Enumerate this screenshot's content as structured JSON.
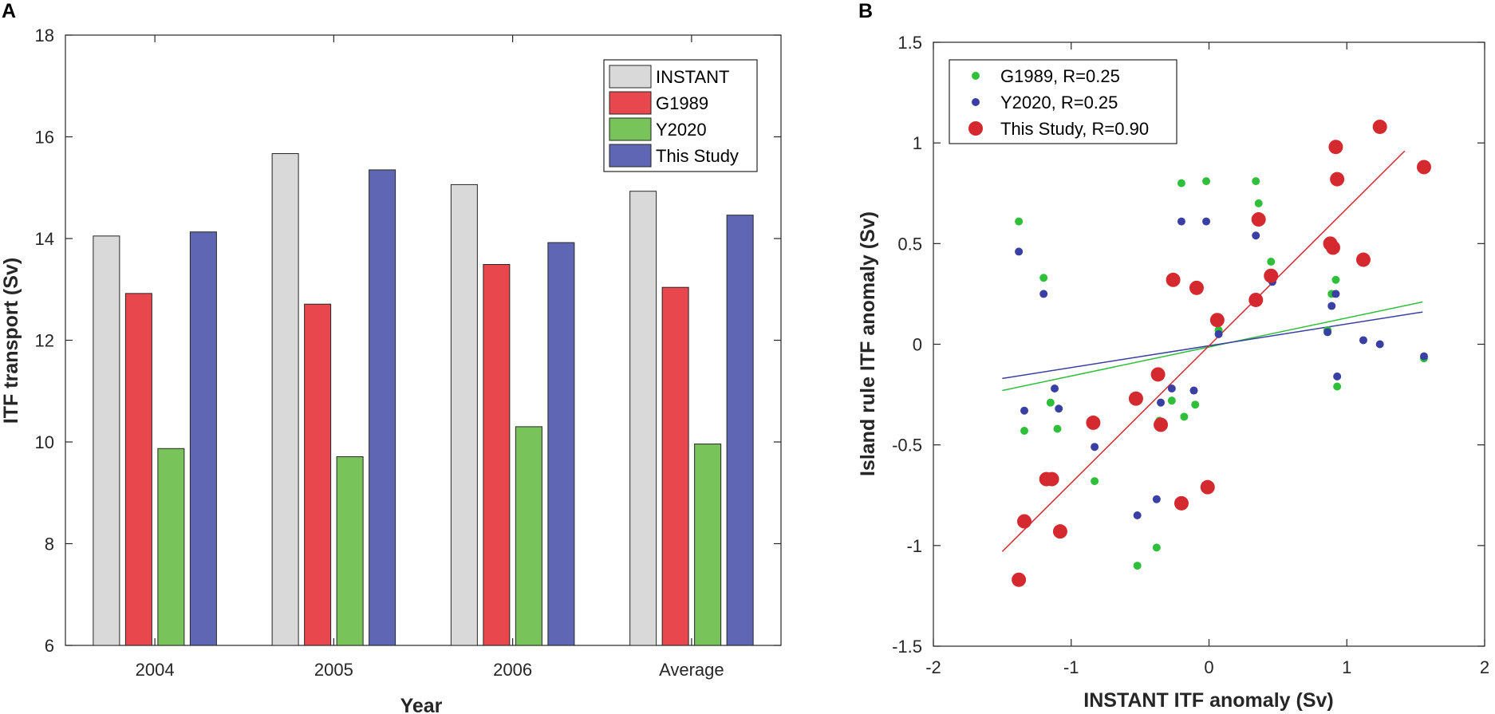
{
  "chart_data": [
    {
      "panel": "A",
      "type": "bar",
      "xlabel": "Year",
      "ylabel": "ITF transport (Sv)",
      "categories": [
        "2004",
        "2005",
        "2006",
        "Average"
      ],
      "ylim": [
        6,
        18
      ],
      "yticks": [
        "6",
        "8",
        "10",
        "12",
        "14",
        "16",
        "18"
      ],
      "series": [
        {
          "name": "INSTANT",
          "color": "#d9d9d9",
          "values": [
            14.05,
            15.67,
            15.06,
            14.93
          ]
        },
        {
          "name": "G1989",
          "color": "#e8474d",
          "values": [
            12.92,
            12.71,
            13.49,
            13.04
          ]
        },
        {
          "name": "Y2020",
          "color": "#78c35a",
          "values": [
            9.87,
            9.71,
            10.3,
            9.96
          ]
        },
        {
          "name": "This Study",
          "color": "#5f66b3",
          "values": [
            14.13,
            15.35,
            13.92,
            14.46
          ]
        }
      ],
      "legend_position": "top-right"
    },
    {
      "panel": "B",
      "type": "scatter",
      "xlabel": "INSTANT ITF anomaly (Sv)",
      "ylabel": "Island rule ITF anomaly (Sv)",
      "xlim": [
        -2,
        2
      ],
      "ylim": [
        -1.5,
        1.5
      ],
      "xticks": [
        "-2",
        "-1",
        "0",
        "1",
        "2"
      ],
      "yticks": [
        "-1.5",
        "-1",
        "-0.5",
        "0",
        "0.5",
        "1",
        "1.5"
      ],
      "legend_position": "top-left",
      "series": [
        {
          "name": "G1989, R=0.25",
          "color": "#2fbf3b",
          "marker": "small",
          "fit": {
            "x": [
              -1.5,
              1.55
            ],
            "y": [
              -0.23,
              0.21
            ]
          },
          "points": [
            [
              -1.38,
              0.61
            ],
            [
              -1.2,
              0.33
            ],
            [
              -1.34,
              -0.43
            ],
            [
              -1.15,
              -0.29
            ],
            [
              -1.1,
              -0.42
            ],
            [
              -0.83,
              -0.68
            ],
            [
              -0.52,
              -1.1
            ],
            [
              -0.38,
              -1.01
            ],
            [
              -0.36,
              -0.38
            ],
            [
              -0.27,
              -0.28
            ],
            [
              -0.2,
              0.8
            ],
            [
              -0.18,
              -0.36
            ],
            [
              -0.02,
              0.81
            ],
            [
              -0.1,
              -0.3
            ],
            [
              0.07,
              0.07
            ],
            [
              0.34,
              0.81
            ],
            [
              0.36,
              0.7
            ],
            [
              0.45,
              0.41
            ],
            [
              0.45,
              0.32
            ],
            [
              0.86,
              0.07
            ],
            [
              0.89,
              0.25
            ],
            [
              0.92,
              0.32
            ],
            [
              0.93,
              -0.21
            ],
            [
              1.56,
              -0.07
            ]
          ]
        },
        {
          "name": "Y2020, R=0.25",
          "color": "#3a3fa3",
          "marker": "small",
          "fit": {
            "x": [
              -1.5,
              1.55
            ],
            "y": [
              -0.17,
              0.16
            ]
          },
          "points": [
            [
              -1.38,
              0.46
            ],
            [
              -1.2,
              0.25
            ],
            [
              -1.34,
              -0.33
            ],
            [
              -1.12,
              -0.22
            ],
            [
              -1.09,
              -0.32
            ],
            [
              -0.83,
              -0.51
            ],
            [
              -0.52,
              -0.85
            ],
            [
              -0.38,
              -0.77
            ],
            [
              -0.35,
              -0.29
            ],
            [
              -0.27,
              -0.22
            ],
            [
              -0.2,
              0.61
            ],
            [
              -0.02,
              0.61
            ],
            [
              -0.11,
              -0.23
            ],
            [
              0.07,
              0.05
            ],
            [
              0.34,
              0.54
            ],
            [
              0.46,
              0.31
            ],
            [
              0.86,
              0.06
            ],
            [
              0.89,
              0.19
            ],
            [
              0.92,
              0.25
            ],
            [
              0.93,
              -0.16
            ],
            [
              1.12,
              0.02
            ],
            [
              1.24,
              0.0
            ],
            [
              1.56,
              -0.06
            ]
          ]
        },
        {
          "name": "This Study, R=0.90",
          "color": "#d42a2f",
          "marker": "large",
          "fit": {
            "x": [
              -1.5,
              1.42
            ],
            "y": [
              -1.03,
              0.96
            ]
          },
          "points": [
            [
              -1.38,
              -1.17
            ],
            [
              -1.34,
              -0.88
            ],
            [
              -1.18,
              -0.67
            ],
            [
              -1.14,
              -0.67
            ],
            [
              -1.08,
              -0.93
            ],
            [
              -0.84,
              -0.39
            ],
            [
              -0.53,
              -0.27
            ],
            [
              -0.37,
              -0.15
            ],
            [
              -0.35,
              -0.4
            ],
            [
              -0.26,
              0.32
            ],
            [
              -0.2,
              -0.79
            ],
            [
              -0.09,
              0.28
            ],
            [
              -0.01,
              -0.71
            ],
            [
              0.06,
              0.12
            ],
            [
              0.34,
              0.22
            ],
            [
              0.36,
              0.62
            ],
            [
              0.45,
              0.34
            ],
            [
              0.88,
              0.5
            ],
            [
              0.9,
              0.48
            ],
            [
              0.92,
              0.98
            ],
            [
              0.93,
              0.82
            ],
            [
              1.12,
              0.42
            ],
            [
              1.24,
              1.08
            ],
            [
              1.56,
              0.88
            ]
          ]
        }
      ]
    }
  ]
}
